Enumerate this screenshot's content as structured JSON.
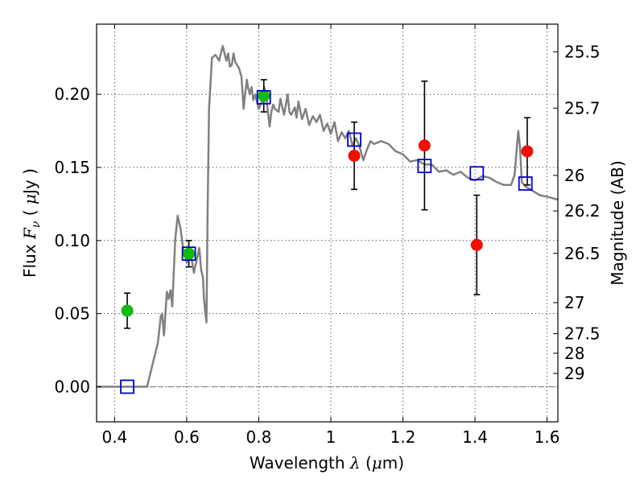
{
  "chart_data": {
    "type": "scatter",
    "xlabel": "Wavelength  λ (μm)",
    "ylabel": "Flux  F_ν  ( μJy )",
    "ylabel_parts": {
      "prefix": "Flux  ",
      "sym": "F",
      "sub": "ν",
      "mid": "  ( ",
      "mu": "μ",
      "unit": "Jy )"
    },
    "xlabel_parts": {
      "prefix": "Wavelength  ",
      "sym": "λ",
      "mid": " (",
      "mu": "μ",
      "unit": "m)"
    },
    "y2label": "Magnitude (AB)",
    "xlim": [
      0.35,
      1.63
    ],
    "ylim": [
      -0.024,
      0.248
    ],
    "grid": true,
    "x_ticks": [
      {
        "value": 0.4,
        "label": "0.4"
      },
      {
        "value": 0.6,
        "label": "0.6"
      },
      {
        "value": 0.8,
        "label": "0.8"
      },
      {
        "value": 1.0,
        "label": "1"
      },
      {
        "value": 1.2,
        "label": "1.2"
      },
      {
        "value": 1.4,
        "label": "1.4"
      },
      {
        "value": 1.6,
        "label": "1.6"
      }
    ],
    "y_ticks": [
      {
        "value": 0.0,
        "label": "0.00"
      },
      {
        "value": 0.05,
        "label": "0.05"
      },
      {
        "value": 0.1,
        "label": "0.10"
      },
      {
        "value": 0.15,
        "label": "0.15"
      },
      {
        "value": 0.2,
        "label": "0.20"
      }
    ],
    "mag_ticks": [
      {
        "mag": 25.5,
        "label": "25.5"
      },
      {
        "mag": 25.7,
        "label": "25.7"
      },
      {
        "mag": 26.0,
        "label": "26"
      },
      {
        "mag": 26.2,
        "label": "26.2"
      },
      {
        "mag": 26.5,
        "label": "26.5"
      },
      {
        "mag": 27.0,
        "label": "27"
      },
      {
        "mag": 27.5,
        "label": "27.5"
      },
      {
        "mag": 28.0,
        "label": "28"
      },
      {
        "mag": 29.0,
        "label": "29"
      }
    ],
    "colors": {
      "model": "#808080",
      "green": "#11bb11",
      "red": "#ee1100",
      "square": "#0000cc",
      "errorbar": "#000000"
    },
    "model_spectrum": {
      "x": [
        0.35,
        0.48,
        0.49,
        0.5,
        0.52,
        0.528,
        0.532,
        0.537,
        0.545,
        0.55,
        0.555,
        0.56,
        0.568,
        0.575,
        0.583,
        0.59,
        0.6,
        0.612,
        0.62,
        0.635,
        0.64,
        0.645,
        0.648,
        0.652,
        0.655,
        0.658,
        0.662,
        0.67,
        0.68,
        0.69,
        0.7,
        0.71,
        0.715,
        0.72,
        0.725,
        0.73,
        0.735,
        0.745,
        0.752,
        0.758,
        0.762,
        0.767,
        0.77,
        0.775,
        0.78,
        0.785,
        0.79,
        0.8,
        0.81,
        0.815,
        0.82,
        0.83,
        0.835,
        0.84,
        0.845,
        0.855,
        0.86,
        0.87,
        0.88,
        0.885,
        0.89,
        0.9,
        0.905,
        0.91,
        0.92,
        0.93,
        0.94,
        0.95,
        0.96,
        0.97,
        0.98,
        0.99,
        1.0,
        1.01,
        1.02,
        1.03,
        1.04,
        1.05,
        1.06,
        1.07,
        1.08,
        1.09,
        1.1,
        1.11,
        1.12,
        1.14,
        1.16,
        1.18,
        1.2,
        1.22,
        1.24,
        1.26,
        1.28,
        1.3,
        1.32,
        1.34,
        1.36,
        1.38,
        1.4,
        1.42,
        1.44,
        1.46,
        1.48,
        1.5,
        1.51,
        1.52,
        1.525,
        1.53,
        1.54,
        1.56,
        1.58,
        1.6,
        1.63
      ],
      "y": [
        0.0,
        0.0,
        0.0,
        0.01,
        0.03,
        0.048,
        0.05,
        0.035,
        0.065,
        0.06,
        0.066,
        0.055,
        0.1,
        0.117,
        0.108,
        0.095,
        0.085,
        0.09,
        0.078,
        0.095,
        0.08,
        0.075,
        0.06,
        0.05,
        0.044,
        0.12,
        0.19,
        0.225,
        0.227,
        0.223,
        0.233,
        0.223,
        0.228,
        0.219,
        0.22,
        0.228,
        0.222,
        0.218,
        0.212,
        0.19,
        0.2,
        0.21,
        0.205,
        0.2,
        0.205,
        0.196,
        0.2,
        0.19,
        0.196,
        0.205,
        0.2,
        0.178,
        0.188,
        0.193,
        0.19,
        0.188,
        0.197,
        0.186,
        0.2,
        0.188,
        0.186,
        0.191,
        0.184,
        0.195,
        0.183,
        0.19,
        0.179,
        0.185,
        0.181,
        0.186,
        0.175,
        0.18,
        0.173,
        0.181,
        0.168,
        0.174,
        0.17,
        0.175,
        0.165,
        0.17,
        0.164,
        0.155,
        0.162,
        0.168,
        0.166,
        0.168,
        0.166,
        0.161,
        0.159,
        0.154,
        0.155,
        0.152,
        0.152,
        0.147,
        0.148,
        0.145,
        0.147,
        0.143,
        0.141,
        0.144,
        0.143,
        0.14,
        0.138,
        0.138,
        0.145,
        0.175,
        0.164,
        0.14,
        0.137,
        0.134,
        0.131,
        0.13,
        0.128
      ]
    },
    "model_photometry": {
      "x": [
        0.435,
        0.606,
        0.814,
        1.065,
        1.26,
        1.405,
        1.54
      ],
      "y": [
        0.0,
        0.091,
        0.198,
        0.169,
        0.151,
        0.146,
        0.139
      ]
    },
    "observed_green": {
      "x": [
        0.435,
        0.606,
        0.814
      ],
      "y": [
        0.052,
        0.091,
        0.199
      ],
      "err": [
        0.012,
        0.009,
        0.011
      ]
    },
    "observed_red": {
      "x": [
        1.065,
        1.26,
        1.405,
        1.545
      ],
      "y": [
        0.158,
        0.165,
        0.097,
        0.161
      ],
      "err": [
        0.023,
        0.044,
        0.034,
        0.023
      ]
    }
  }
}
